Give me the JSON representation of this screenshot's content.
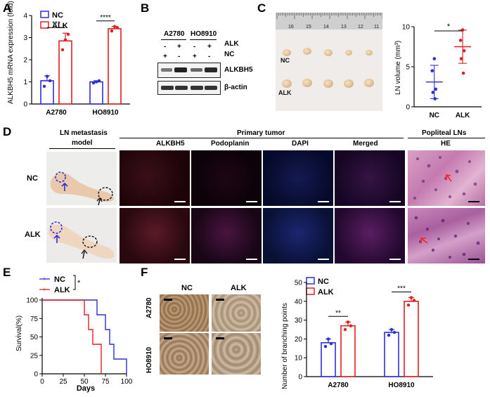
{
  "panels": {
    "A": "A",
    "B": "B",
    "C": "C",
    "D": "D",
    "E": "E",
    "F": "F"
  },
  "colors": {
    "nc": "#2d2dd9",
    "alk": "#e02020"
  },
  "legend": {
    "nc": "NC",
    "alk": "ALK"
  },
  "panelA": {
    "chart_data": {
      "type": "bar",
      "ylabel": "ALKBH5 mRNA expression (fold)",
      "categories": [
        "A2780",
        "HO8910"
      ],
      "ylim": [
        0,
        4
      ],
      "yticks": [
        "0",
        "1",
        "2",
        "3",
        "4"
      ],
      "series": [
        {
          "name": "NC",
          "values": [
            1.05,
            1.0
          ],
          "points": [
            [
              0.8,
              1.25,
              1.05
            ],
            [
              0.95,
              1.0,
              1.05
            ]
          ]
        },
        {
          "name": "ALK",
          "values": [
            2.85,
            3.4
          ],
          "points": [
            [
              2.45,
              2.9,
              3.15
            ],
            [
              3.3,
              3.5,
              3.45
            ]
          ]
        }
      ],
      "significance": [
        "***",
        "****"
      ]
    }
  },
  "panelB": {
    "cell_lines": [
      "A2780",
      "HO8910"
    ],
    "row_labels": [
      "ALK",
      "NC"
    ],
    "alk_marks": [
      "-",
      "+",
      "-",
      "+"
    ],
    "nc_marks": [
      "+",
      "-",
      "+",
      "-"
    ],
    "bands": [
      "ALKBH5",
      "β-actin"
    ]
  },
  "panelC": {
    "ruler_numbers": [
      "16",
      "15",
      "14",
      "13",
      "12",
      "11"
    ],
    "group_labels": [
      "NC",
      "ALK"
    ],
    "chart_data": {
      "type": "scatter",
      "ylabel": "LN volume (mm³)",
      "categories": [
        "NC",
        "ALK"
      ],
      "ylim": [
        0,
        10
      ],
      "yticks": [
        "0",
        "5",
        "10"
      ],
      "series": [
        {
          "name": "NC",
          "points": [
            6.0,
            4.5,
            2.2,
            1.8,
            1.0
          ],
          "mean": 3.1
        },
        {
          "name": "ALK",
          "points": [
            9.6,
            8.3,
            7.0,
            6.0,
            4.2
          ],
          "mean": 7.5
        }
      ],
      "significance": "*"
    }
  },
  "panelD": {
    "header_left": "LN metastasis",
    "header_left2": "model",
    "header_mid": "Primary tumor",
    "header_right": "Popliteal LNs",
    "columns": [
      "ALKBH5",
      "Podoplanin",
      "DAPI",
      "Merged"
    ],
    "he_label": "HE",
    "rows": [
      "NC",
      "ALK"
    ]
  },
  "panelE": {
    "chart_data": {
      "type": "line",
      "xlabel": "Days",
      "ylabel": "Survival(%)",
      "xlim": [
        0,
        100
      ],
      "ylim": [
        0,
        100
      ],
      "xticks": [
        "0",
        "25",
        "50",
        "75",
        "100"
      ],
      "yticks": [
        "0",
        "25",
        "50",
        "75",
        "100"
      ],
      "series": [
        {
          "name": "NC",
          "x": [
            0,
            65,
            65,
            75,
            75,
            80,
            80,
            85,
            85,
            100,
            100
          ],
          "y": [
            100,
            100,
            80,
            80,
            60,
            60,
            40,
            40,
            20,
            20,
            0
          ]
        },
        {
          "name": "ALK",
          "x": [
            0,
            50,
            50,
            55,
            55,
            60,
            60,
            70,
            70
          ],
          "y": [
            100,
            100,
            80,
            80,
            60,
            60,
            40,
            40,
            0
          ]
        }
      ],
      "significance": "*"
    }
  },
  "panelF": {
    "col_labels": [
      "NC",
      "ALK"
    ],
    "row_labels": [
      "A2780",
      "HO8910"
    ],
    "chart_data": {
      "type": "bar",
      "ylabel": "Number of branching points",
      "categories": [
        "A2780",
        "HO8910"
      ],
      "ylim": [
        0,
        50
      ],
      "yticks": [
        "0",
        "10",
        "20",
        "30",
        "40",
        "50"
      ],
      "series": [
        {
          "name": "NC",
          "values": [
            18,
            23.5
          ],
          "points": [
            [
              16,
              20,
              17.5
            ],
            [
              22,
              25,
              23.5
            ]
          ]
        },
        {
          "name": "ALK",
          "values": [
            27,
            40
          ],
          "points": [
            [
              25,
              29,
              27
            ],
            [
              38,
              42,
              40.5
            ]
          ]
        }
      ],
      "significance": [
        "**",
        "***"
      ]
    }
  }
}
